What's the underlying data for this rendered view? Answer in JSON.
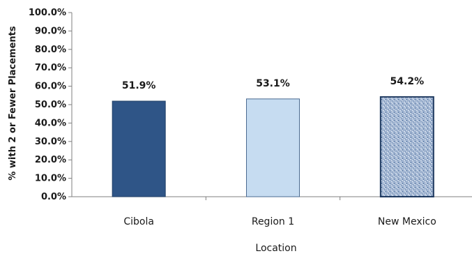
{
  "chart_data": {
    "type": "bar",
    "categories": [
      "Cibola",
      "Region 1",
      "New Mexico"
    ],
    "values": [
      51.9,
      53.1,
      54.2
    ],
    "value_labels": [
      "51.9%",
      "53.1%",
      "54.2%"
    ],
    "xlabel": "Location",
    "ylabel": "% with 2 or Fewer Placements",
    "ylim": [
      0,
      100
    ],
    "yticks": [
      0,
      10,
      20,
      30,
      40,
      50,
      60,
      70,
      80,
      90,
      100
    ],
    "ytick_labels": [
      "0.0%",
      "10.0%",
      "20.0%",
      "30.0%",
      "40.0%",
      "50.0%",
      "60.0%",
      "70.0%",
      "80.0%",
      "90.0%",
      "100.0%"
    ],
    "grid": false,
    "legend": "none",
    "bar_colors": [
      "#2f5587",
      "#c6dcf1",
      "#8fa6c6"
    ],
    "bar_styles": [
      "solid",
      "solid",
      "textured"
    ]
  }
}
